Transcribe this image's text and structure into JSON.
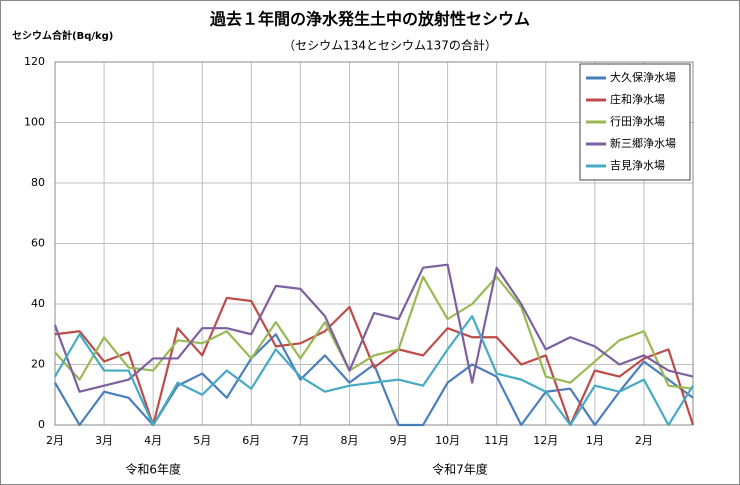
{
  "chart_data": {
    "type": "line",
    "title": "過去１年間の浄水発生土中の放射性セシウム",
    "subtitle": "（セシウム134とセシウム137の合計）",
    "y_label": "セシウム合計(Bq/kg)",
    "categories": [
      "2月",
      null,
      "3月",
      null,
      "4月",
      null,
      "5月",
      null,
      "6月",
      null,
      "7月",
      null,
      "8月",
      null,
      "9月",
      null,
      "10月",
      null,
      "11月",
      null,
      "12月",
      null,
      "1月",
      null,
      "2月",
      null,
      null
    ],
    "annotations": [
      "令和6年度",
      "令和7年度"
    ],
    "ylim": [
      0,
      120
    ],
    "yticks": [
      0,
      20,
      40,
      60,
      80,
      100,
      120
    ],
    "grid": true,
    "legend": "top-right",
    "series": [
      {
        "name": "大久保浄水場",
        "color": "#4a7ebb",
        "values": [
          14,
          0,
          11,
          9,
          0,
          13,
          17,
          9,
          22,
          30,
          15,
          23,
          14,
          20,
          0,
          0,
          14,
          20,
          16,
          0,
          11,
          12,
          0,
          11,
          21,
          15,
          9
        ]
      },
      {
        "name": "庄和浄水場",
        "color": "#be4b48",
        "values": [
          30,
          31,
          21,
          24,
          0,
          32,
          23,
          42,
          41,
          26,
          27,
          31,
          39,
          19,
          25,
          23,
          32,
          29,
          29,
          20,
          23,
          0,
          18,
          16,
          22,
          25,
          0
        ]
      },
      {
        "name": "行田浄水場",
        "color": "#98b954",
        "values": [
          24,
          15,
          29,
          19,
          18,
          28,
          27,
          31,
          22,
          34,
          22,
          34,
          18,
          23,
          25,
          49,
          35,
          40,
          49,
          39,
          16,
          14,
          21,
          28,
          31,
          13,
          12
        ]
      },
      {
        "name": "新三郷浄水場",
        "color": "#7d60a0",
        "values": [
          33,
          11,
          13,
          15,
          22,
          22,
          32,
          32,
          30,
          46,
          45,
          36,
          18,
          37,
          35,
          52,
          53,
          14,
          52,
          40,
          25,
          29,
          26,
          20,
          23,
          18,
          16
        ]
      },
      {
        "name": "吉見浄水場",
        "color": "#46aac5",
        "values": [
          16,
          30,
          18,
          18,
          0,
          14,
          10,
          18,
          12,
          25,
          16,
          11,
          13,
          14,
          15,
          13,
          25,
          36,
          17,
          15,
          11,
          0,
          13,
          11,
          15,
          0,
          13
        ]
      }
    ]
  }
}
